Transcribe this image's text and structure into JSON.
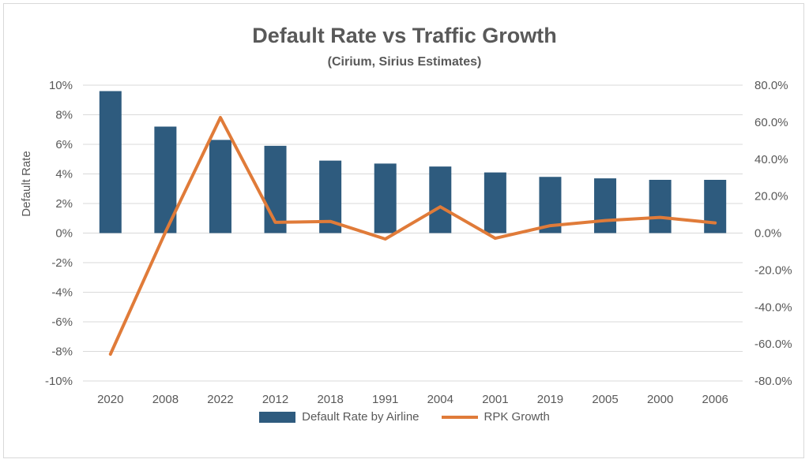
{
  "chart_data": {
    "type": "bar+line",
    "title": "Default Rate vs Traffic Growth",
    "subtitle": "(Cirium, Sirius Estimates)",
    "categories": [
      "2020",
      "2008",
      "2022",
      "2012",
      "2018",
      "1991",
      "2004",
      "2001",
      "2019",
      "2005",
      "2000",
      "2006"
    ],
    "series": [
      {
        "name": "Default Rate by Airline",
        "kind": "bar",
        "axis": "left",
        "color": "#2e5b7e",
        "values": [
          9.6,
          7.2,
          6.3,
          5.9,
          4.9,
          4.7,
          4.5,
          4.1,
          3.8,
          3.7,
          3.6,
          3.6
        ]
      },
      {
        "name": "RPK Growth",
        "kind": "line",
        "axis": "right",
        "color": "#e07b39",
        "values": [
          -65.5,
          0.5,
          62.5,
          5.8,
          6.3,
          -3.2,
          14.2,
          -2.8,
          4.0,
          6.8,
          8.5,
          5.5
        ]
      }
    ],
    "y_left": {
      "label": "Default Rate",
      "range": [
        -10,
        10
      ],
      "ticks": [
        "10%",
        "8%",
        "6%",
        "4%",
        "2%",
        "0%",
        "-2%",
        "-4%",
        "-6%",
        "-8%",
        "-10%"
      ]
    },
    "y_right": {
      "label": "",
      "range": [
        -80,
        80
      ],
      "ticks": [
        "80.0%",
        "60.0%",
        "40.0%",
        "20.0%",
        "0.0%",
        "-20.0%",
        "-40.0%",
        "-60.0%",
        "-80.0%"
      ]
    },
    "grid": true,
    "legend_position": "bottom"
  }
}
